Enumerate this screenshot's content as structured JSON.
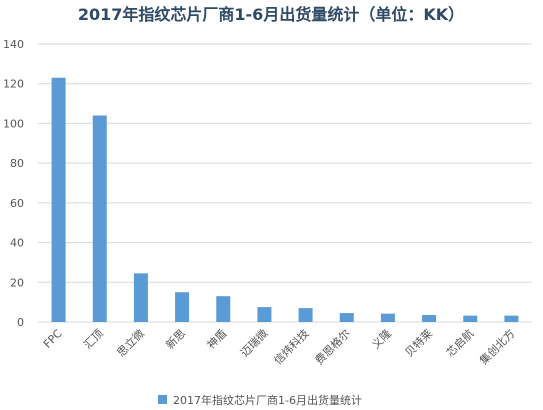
{
  "chart_data": {
    "type": "bar",
    "title": "2017年指纹芯片厂商1-6月出货量统计（单位：KK）",
    "categories": [
      "FPC",
      "汇顶",
      "思立微",
      "新思",
      "神盾",
      "迈瑞微",
      "信炜科技",
      "费恩格尔",
      "义隆",
      "贝特莱",
      "芯启航",
      "集创北方"
    ],
    "series": [
      {
        "name": "2017年指纹芯片厂商1-6月出货量统计",
        "values": [
          123,
          104,
          24.5,
          15,
          13,
          7.5,
          7,
          4.5,
          4.2,
          3.5,
          3.2,
          3.2
        ]
      }
    ],
    "ylim": [
      0,
      140
    ],
    "yticks": [
      0,
      20,
      40,
      60,
      80,
      100,
      120,
      140
    ],
    "xlabel": "",
    "ylabel": "",
    "grid": true,
    "legend_position": "bottom",
    "bar_color": "#5b9bd5",
    "grid_color": "#d9d9d9"
  }
}
